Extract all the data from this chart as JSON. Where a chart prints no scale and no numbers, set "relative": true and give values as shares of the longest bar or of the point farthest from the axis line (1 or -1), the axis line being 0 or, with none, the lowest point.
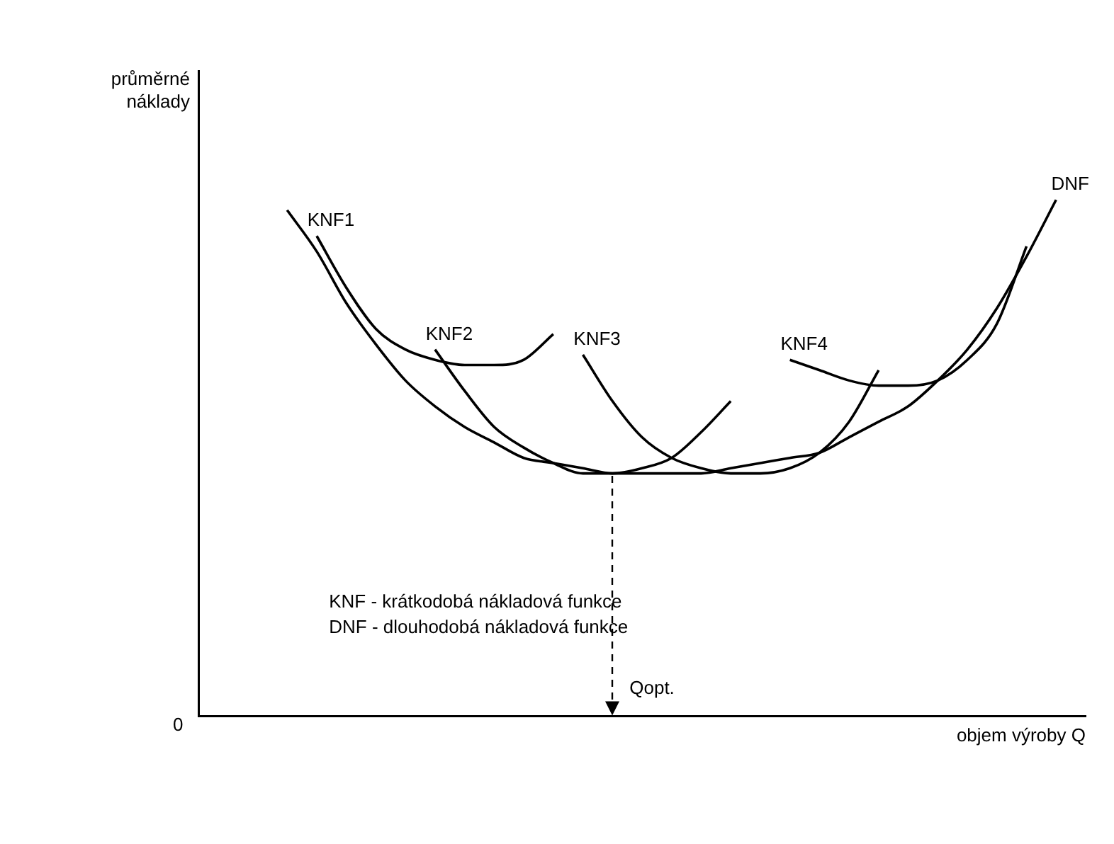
{
  "chart_data": {
    "type": "line",
    "relative": true,
    "xlabel": "objem výroby Q",
    "ylabel": "průměrné náklady",
    "marker": "none",
    "line_style": "solid",
    "grid": false,
    "legend": false,
    "categories": [
      null,
      null,
      null,
      null,
      null,
      null,
      null,
      null,
      null,
      null,
      null,
      null,
      null,
      null,
      null,
      null,
      null,
      null,
      null,
      null,
      null,
      null,
      null,
      null,
      null,
      null,
      null,
      null,
      null,
      null,
      null
    ],
    "series": [
      {
        "name": "DNF",
        "color": "#000000",
        "values": [
          null,
          null,
          null,
          0.98,
          0.9,
          0.8,
          0.72,
          0.65,
          0.6,
          0.56,
          0.53,
          0.5,
          0.49,
          0.48,
          0.47,
          0.47,
          0.47,
          0.47,
          0.48,
          0.49,
          0.5,
          0.51,
          0.54,
          0.57,
          0.6,
          0.65,
          0.71,
          0.79,
          0.89,
          1.0,
          null
        ]
      },
      {
        "name": "KNF1",
        "color": "#000000",
        "values": [
          null,
          null,
          null,
          null,
          0.93,
          0.83,
          0.75,
          0.71,
          0.69,
          0.68,
          0.68,
          0.69,
          0.74,
          null,
          null,
          null,
          null,
          null,
          null,
          null,
          null,
          null,
          null,
          null,
          null,
          null,
          null,
          null,
          null,
          null,
          null
        ]
      },
      {
        "name": "KNF2",
        "color": "#000000",
        "values": [
          null,
          null,
          null,
          null,
          null,
          null,
          null,
          null,
          0.71,
          0.63,
          0.56,
          0.52,
          0.49,
          0.47,
          0.47,
          0.48,
          0.5,
          0.55,
          0.61,
          null,
          null,
          null,
          null,
          null,
          null,
          null,
          null,
          null,
          null,
          null,
          null
        ]
      },
      {
        "name": "KNF3",
        "color": "#000000",
        "values": [
          null,
          null,
          null,
          null,
          null,
          null,
          null,
          null,
          null,
          null,
          null,
          null,
          null,
          0.7,
          0.61,
          0.54,
          0.5,
          0.48,
          0.47,
          0.47,
          0.48,
          0.51,
          0.57,
          0.67,
          null,
          null,
          null,
          null,
          null,
          null,
          null
        ]
      },
      {
        "name": "KNF4",
        "color": "#000000",
        "values": [
          null,
          null,
          null,
          null,
          null,
          null,
          null,
          null,
          null,
          null,
          null,
          null,
          null,
          null,
          null,
          null,
          null,
          null,
          null,
          null,
          0.69,
          0.67,
          0.65,
          0.64,
          0.64,
          0.65,
          0.69,
          0.76,
          0.91,
          null,
          null
        ]
      }
    ],
    "annotations": [
      "KNF - krátkodobá nákladová funkce",
      "DNF - dlouhodobá nákladová funkce",
      "Qopt.",
      "0"
    ]
  }
}
